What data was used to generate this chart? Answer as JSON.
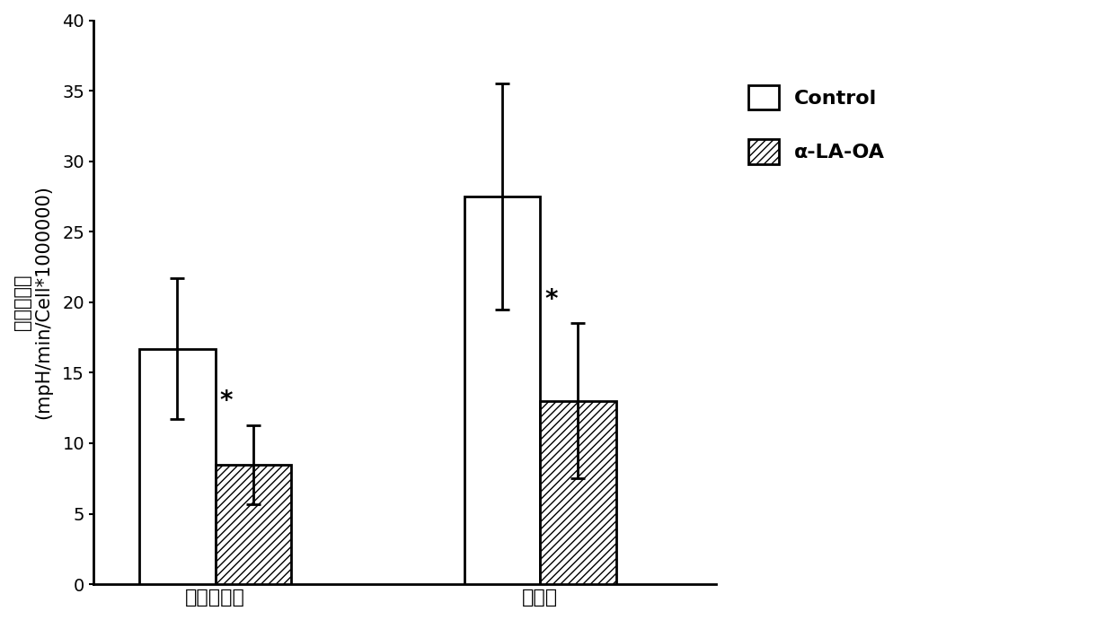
{
  "groups": [
    "糖酵解能力",
    "糖酵解"
  ],
  "control_values": [
    16.7,
    27.5
  ],
  "control_errors": [
    5.0,
    8.0
  ],
  "treatment_values": [
    8.5,
    13.0
  ],
  "treatment_errors": [
    2.8,
    5.5
  ],
  "ylabel_line1": "胞外酸化率",
  "ylabel_line2": "(mpH/min/Cell*1000000)",
  "legend_labels": [
    "Control",
    "α-LA-OA"
  ],
  "ylim": [
    0,
    40
  ],
  "yticks": [
    0,
    5,
    10,
    15,
    20,
    25,
    30,
    35,
    40
  ],
  "bar_width": 0.28,
  "group_positions": [
    0.55,
    1.75
  ],
  "control_color": "#ffffff",
  "edge_color": "#000000",
  "asterisk_fontsize": 20,
  "label_fontsize": 15,
  "tick_fontsize": 14,
  "legend_fontsize": 16,
  "background_color": "#ffffff"
}
